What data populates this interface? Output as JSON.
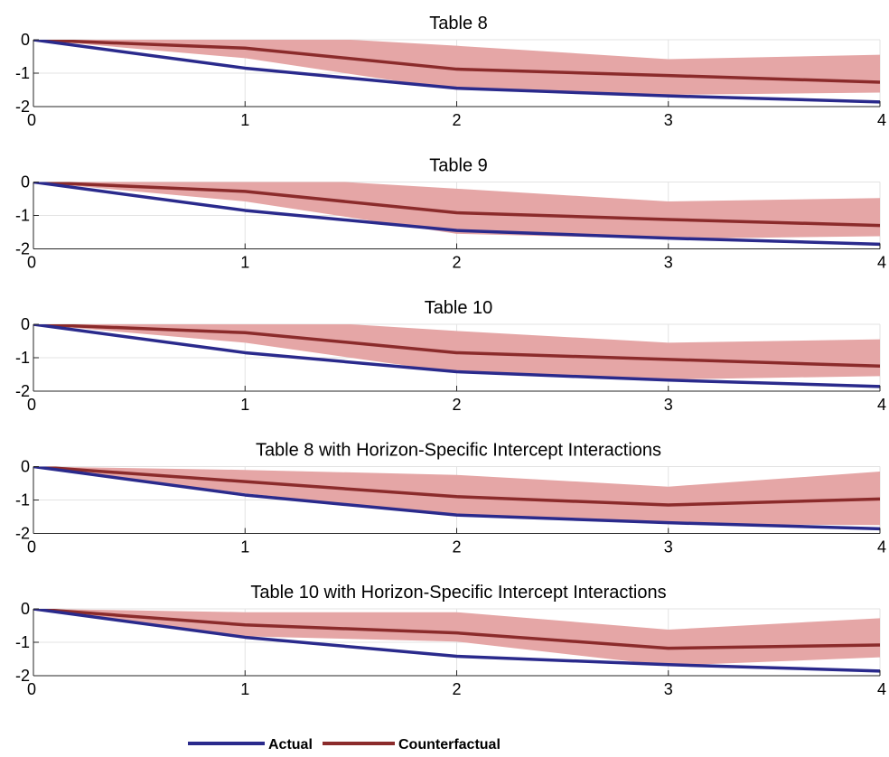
{
  "legend": {
    "placement": "bottom-center",
    "items": [
      {
        "label": "Actual",
        "color": "#2a2a8c"
      },
      {
        "label": "Counterfactual",
        "color": "#8b2b2b"
      }
    ]
  },
  "colors": {
    "actual": "#2a2a8c",
    "counterfactual": "#8b2b2b",
    "band": "#e5a6a6",
    "grid": "#e3e3e3",
    "axis": "#262626"
  },
  "chart_data": [
    {
      "type": "line",
      "title": "Table 8",
      "x": [
        0,
        1,
        2,
        3,
        4
      ],
      "xlim": [
        0,
        4
      ],
      "ylim": [
        -2,
        0
      ],
      "xticks": [
        "0",
        "1",
        "2",
        "3",
        "4"
      ],
      "yticks": [
        "0",
        "-1",
        "-2"
      ],
      "grid": true,
      "series": [
        {
          "name": "Actual",
          "values": [
            0,
            -0.85,
            -1.45,
            -1.68,
            -1.86
          ]
        },
        {
          "name": "Counterfactual",
          "values": [
            0,
            -0.25,
            -0.88,
            -1.07,
            -1.27
          ],
          "band_upper": [
            0,
            0.18,
            -0.18,
            -0.58,
            -0.45
          ],
          "band_lower": [
            0,
            -0.55,
            -1.5,
            -1.65,
            -1.58
          ]
        }
      ]
    },
    {
      "type": "line",
      "title": "Table 9",
      "x": [
        0,
        1,
        2,
        3,
        4
      ],
      "xlim": [
        0,
        4
      ],
      "ylim": [
        -2,
        0
      ],
      "xticks": [
        "0",
        "1",
        "2",
        "3",
        "4"
      ],
      "yticks": [
        "0",
        "-1",
        "-2"
      ],
      "grid": true,
      "series": [
        {
          "name": "Actual",
          "values": [
            0,
            -0.85,
            -1.45,
            -1.68,
            -1.86
          ]
        },
        {
          "name": "Counterfactual",
          "values": [
            0,
            -0.28,
            -0.92,
            -1.12,
            -1.3
          ],
          "band_upper": [
            0,
            0.18,
            -0.2,
            -0.58,
            -0.48
          ],
          "band_lower": [
            0,
            -0.58,
            -1.55,
            -1.7,
            -1.62
          ]
        }
      ]
    },
    {
      "type": "line",
      "title": "Table 10",
      "x": [
        0,
        1,
        2,
        3,
        4
      ],
      "xlim": [
        0,
        4
      ],
      "ylim": [
        -2,
        0
      ],
      "xticks": [
        "0",
        "1",
        "2",
        "3",
        "4"
      ],
      "yticks": [
        "0",
        "-1",
        "-2"
      ],
      "grid": true,
      "series": [
        {
          "name": "Actual",
          "values": [
            0,
            -0.85,
            -1.42,
            -1.67,
            -1.86
          ]
        },
        {
          "name": "Counterfactual",
          "values": [
            0,
            -0.25,
            -0.85,
            -1.05,
            -1.25
          ],
          "band_upper": [
            0,
            0.2,
            -0.2,
            -0.55,
            -0.45
          ],
          "band_lower": [
            0,
            -0.55,
            -1.45,
            -1.65,
            -1.55
          ]
        }
      ]
    },
    {
      "type": "line",
      "title": "Table 8 with Horizon-Specific Intercept Interactions",
      "x": [
        0,
        1,
        2,
        3,
        4
      ],
      "xlim": [
        0,
        4
      ],
      "ylim": [
        -2,
        0
      ],
      "xticks": [
        "0",
        "1",
        "2",
        "3",
        "4"
      ],
      "yticks": [
        "0",
        "-1",
        "-2"
      ],
      "grid": true,
      "series": [
        {
          "name": "Actual",
          "values": [
            0,
            -0.85,
            -1.45,
            -1.68,
            -1.86
          ]
        },
        {
          "name": "Counterfactual",
          "values": [
            0,
            -0.45,
            -0.9,
            -1.15,
            -0.97
          ],
          "band_upper": [
            0,
            -0.1,
            -0.25,
            -0.6,
            -0.15
          ],
          "band_lower": [
            0,
            -0.8,
            -1.45,
            -1.72,
            -1.75
          ]
        }
      ]
    },
    {
      "type": "line",
      "title": "Table 10 with Horizon-Specific Intercept Interactions",
      "x": [
        0,
        1,
        2,
        3,
        4
      ],
      "xlim": [
        0,
        4
      ],
      "ylim": [
        -2,
        0
      ],
      "xticks": [
        "0",
        "1",
        "2",
        "3",
        "4"
      ],
      "yticks": [
        "0",
        "-1",
        "-2"
      ],
      "grid": true,
      "series": [
        {
          "name": "Actual",
          "values": [
            0,
            -0.85,
            -1.42,
            -1.67,
            -1.86
          ]
        },
        {
          "name": "Counterfactual",
          "values": [
            0,
            -0.48,
            -0.72,
            -1.18,
            -1.08
          ],
          "band_upper": [
            0,
            -0.1,
            -0.1,
            -0.62,
            -0.28
          ],
          "band_lower": [
            0,
            -0.82,
            -0.98,
            -1.7,
            -1.45
          ]
        }
      ]
    }
  ]
}
